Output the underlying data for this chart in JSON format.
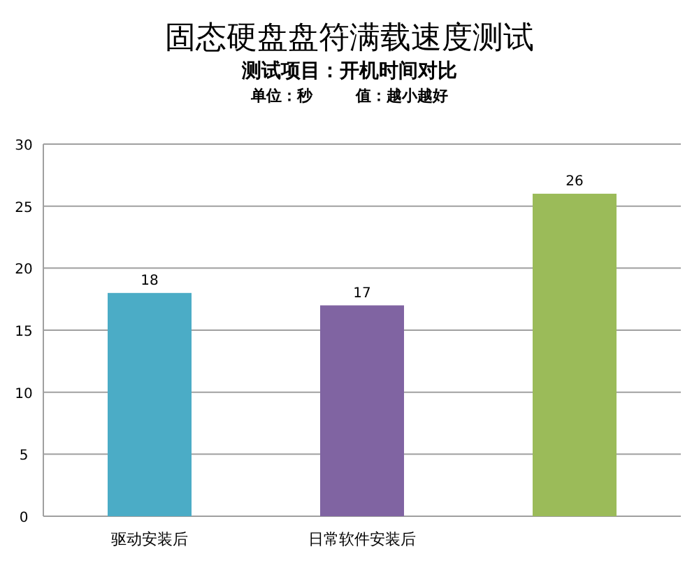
{
  "chart_data": {
    "type": "bar",
    "title": "固态硬盘盘符满载速度测试",
    "subtitle": "测试项目：开机时间对比",
    "annotations": [
      "单位：秒        值：越小越好"
    ],
    "categories": [
      "驱动安装后",
      "日常软件安装后",
      null
    ],
    "values": [
      18,
      17,
      26
    ],
    "colors": [
      "#4bacc6",
      "#8064a2",
      "#9bbb59"
    ],
    "ylim": [
      0,
      30
    ],
    "yticks": [
      0,
      5,
      10,
      15,
      20,
      25,
      30
    ],
    "grid": "y",
    "data_labels": true
  }
}
